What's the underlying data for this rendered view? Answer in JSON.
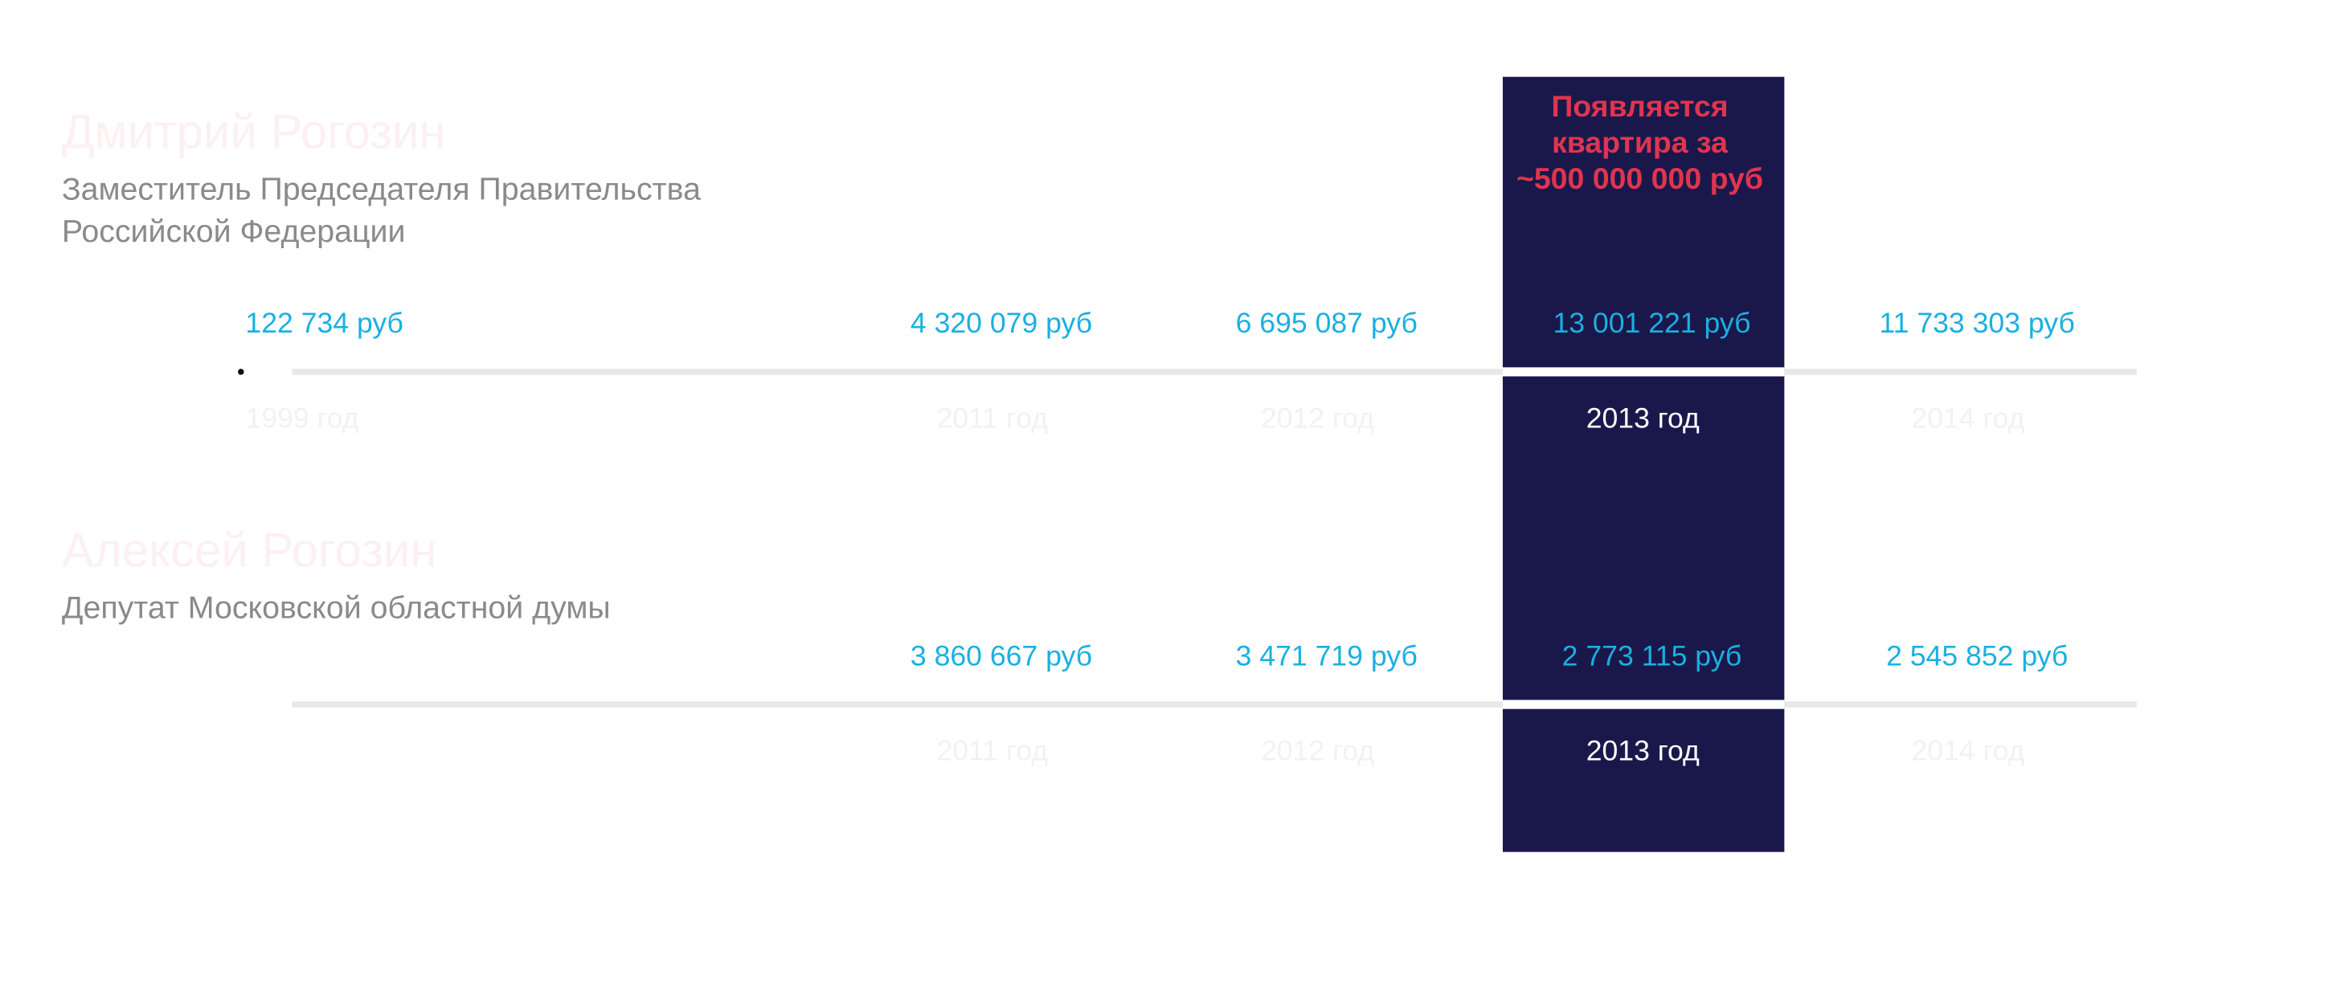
{
  "people": [
    {
      "name": "Дмитрий Рогозин",
      "position": [
        "Заместитель Председателя Правительства",
        "Российской Федерации"
      ],
      "entries": [
        {
          "value": "122 734 руб",
          "year": "1999 год"
        },
        {
          "value": "4 320 079 руб",
          "year": "2011 год"
        },
        {
          "value": "6 695 087 руб",
          "year": "2012 год"
        },
        {
          "value": "13 001 221 руб",
          "year": "2013 год"
        },
        {
          "value": "11 733 303 руб",
          "year": "2014 год"
        }
      ]
    },
    {
      "name": "Алексей Рогозин",
      "position": [
        "Депутат Московской областной думы"
      ],
      "entries": [
        {
          "value": "3 860 667 руб",
          "year": "2011 год"
        },
        {
          "value": "3 471 719 руб",
          "year": "2012 год"
        },
        {
          "value": "2 773 115 руб",
          "year": "2013 год"
        },
        {
          "value": "2 545 852 руб",
          "year": "2014 год"
        }
      ]
    }
  ],
  "callout": [
    "Появляется",
    "квартира за",
    "~500 000 000 руб"
  ]
}
